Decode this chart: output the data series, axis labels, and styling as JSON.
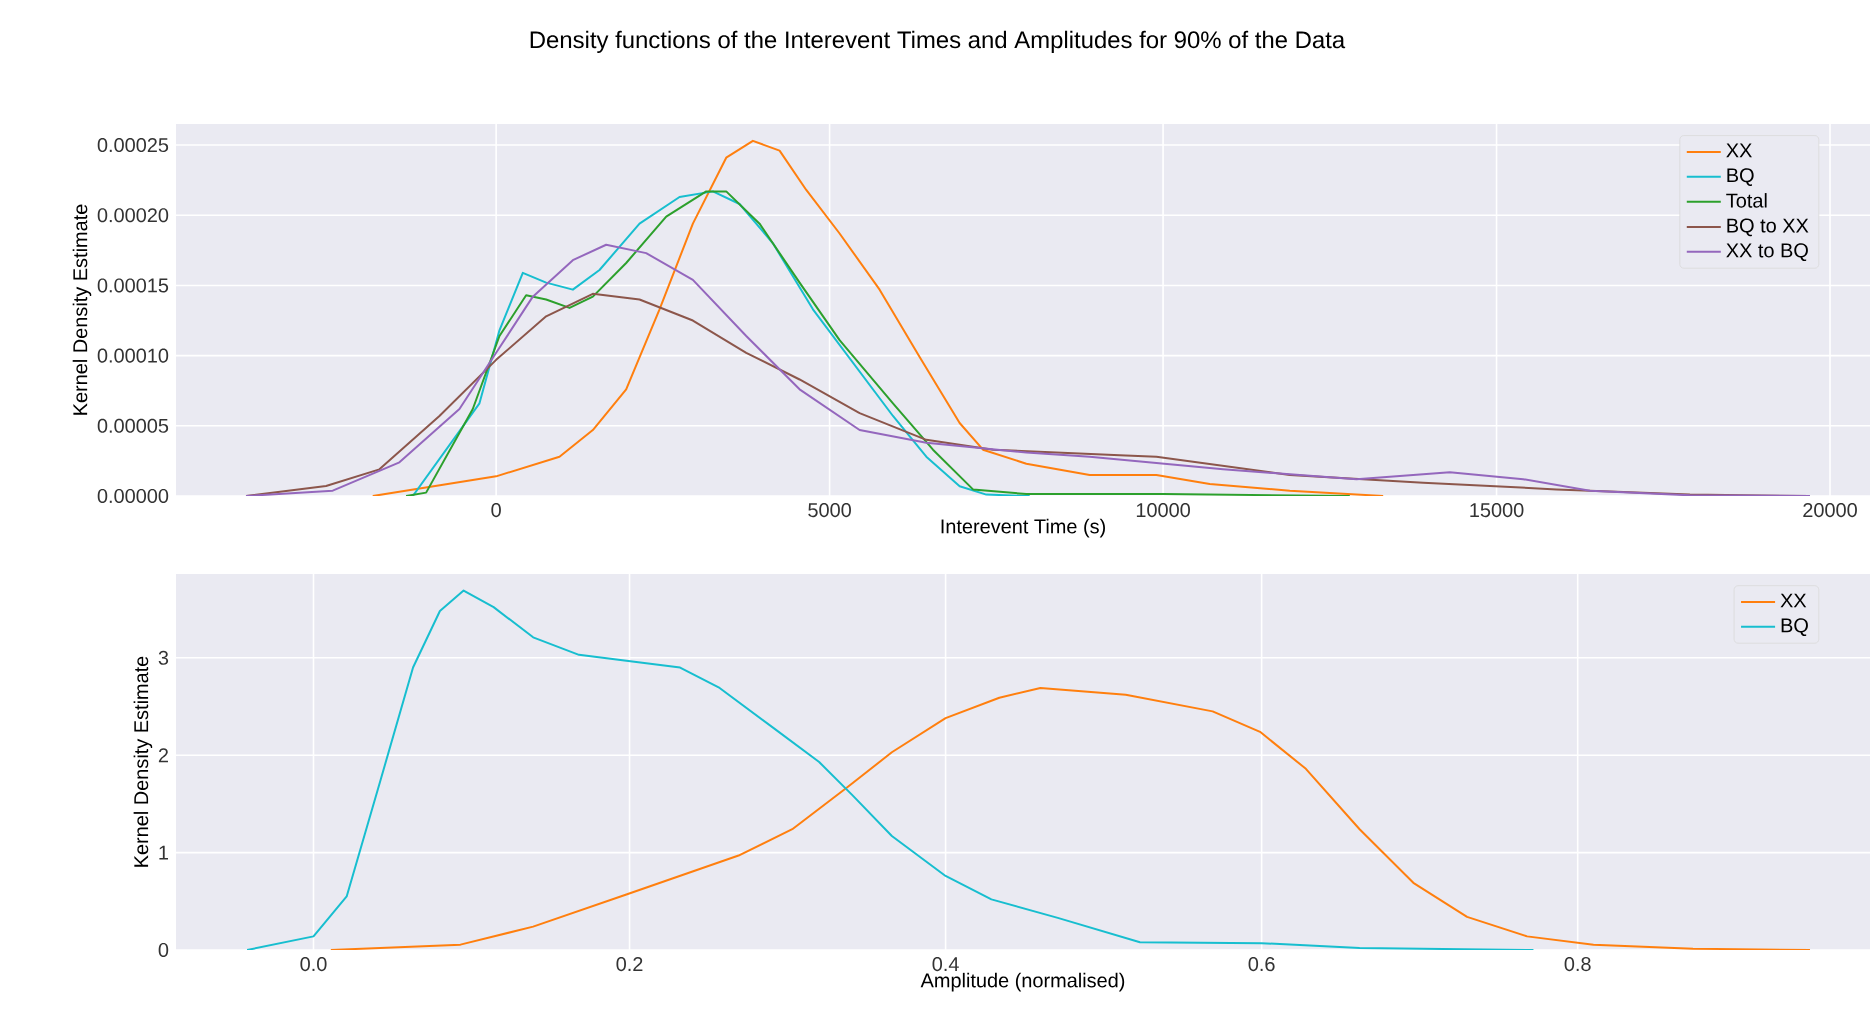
{
  "chart_data": [
    {
      "type": "line",
      "title": "Density functions of the Interevent Times and Amplitudes for 90% of the Data",
      "xlabel": "Interevent Time (s)",
      "ylabel": "Kernel Density Estimate",
      "xlim": [
        -4800,
        20600
      ],
      "ylim": [
        0,
        0.000265
      ],
      "xticks": [
        0,
        5000,
        10000,
        15000,
        20000
      ],
      "yticks": [
        {
          "value": 0,
          "label": "0.00000"
        },
        {
          "value": 5e-05,
          "label": "0.00005"
        },
        {
          "value": 0.0001,
          "label": "0.00010"
        },
        {
          "value": 0.00015,
          "label": "0.00015"
        },
        {
          "value": 0.0002,
          "label": "0.00020"
        },
        {
          "value": 0.00025,
          "label": "0.00025"
        }
      ],
      "grid": true,
      "legend": "top right",
      "series": [
        {
          "name": "XX",
          "color": "#ff7f0e",
          "x": [
            -1850,
            0,
            950,
            1450,
            1950,
            2450,
            2950,
            3450,
            3850,
            4250,
            4650,
            5150,
            5750,
            6350,
            6950,
            7300,
            7950,
            8900,
            9900,
            10700,
            11900,
            13300
          ],
          "values": [
            0,
            1.4e-05,
            2.8e-05,
            4.7e-05,
            7.6e-05,
            0.000133,
            0.000194,
            0.000241,
            0.000253,
            0.000246,
            0.000218,
            0.000187,
            0.000147,
            9.9e-05,
            5.2e-05,
            3.3e-05,
            2.3e-05,
            1.5e-05,
            1.5e-05,
            8.5e-06,
            3.8e-06,
            0
          ]
        },
        {
          "name": "BQ",
          "color": "#17becf",
          "x": [
            -1250,
            -250,
            50,
            400,
            750,
            1150,
            1550,
            2150,
            2750,
            3250,
            3650,
            4150,
            4750,
            5350,
            5950,
            6450,
            6950,
            7350,
            8000
          ],
          "values": [
            0,
            6.6e-05,
            0.000118,
            0.000159,
            0.000152,
            0.000147,
            0.000161,
            0.000194,
            0.000213,
            0.000217,
            0.000208,
            0.00018,
            0.000133,
            9.5e-05,
            5.7e-05,
            2.8e-05,
            7e-06,
            1e-06,
            0
          ]
        },
        {
          "name": "Total",
          "color": "#2ca02c",
          "x": [
            -1350,
            -1050,
            -350,
            50,
            450,
            750,
            1100,
            1450,
            1950,
            2550,
            3150,
            3450,
            3950,
            4550,
            5150,
            5950,
            6550,
            7150,
            7950,
            10000,
            12800
          ],
          "values": [
            0,
            2.4e-06,
            6.2e-05,
            0.000114,
            0.000143,
            0.00014,
            0.000134,
            0.000142,
            0.000166,
            0.000199,
            0.000217,
            0.000217,
            0.000194,
            0.000152,
            0.000111,
            6.6e-05,
            3.3e-05,
            4.7e-06,
            1.4e-06,
            1.4e-06,
            0
          ]
        },
        {
          "name": "BQ to XX",
          "color": "#8c564b",
          "x": [
            -3750,
            -2550,
            -1750,
            -850,
            0,
            750,
            1450,
            2150,
            2950,
            3750,
            4550,
            5450,
            6450,
            7450,
            9350,
            9900,
            11900,
            13900,
            15900,
            17900,
            19700
          ],
          "values": [
            0,
            7.1e-06,
            1.9e-05,
            5.7e-05,
            9.7e-05,
            0.000128,
            0.000144,
            0.00014,
            0.000125,
            0.000102,
            8.3e-05,
            5.9e-05,
            4e-05,
            3.3e-05,
            2.9e-05,
            2.8e-05,
            1.5e-05,
            9.5e-06,
            4.7e-06,
            1e-06,
            0
          ]
        },
        {
          "name": "XX to BQ",
          "color": "#9467bd",
          "x": [
            -3750,
            -2450,
            -1450,
            -550,
            0,
            550,
            1150,
            1650,
            2250,
            2950,
            3750,
            4550,
            5450,
            6450,
            7950,
            8900,
            10900,
            12900,
            14300,
            15400,
            16400,
            17900,
            19700
          ],
          "values": [
            0,
            3.8e-06,
            2.4e-05,
            6.2e-05,
            0.000102,
            0.000142,
            0.000168,
            0.000179,
            0.000173,
            0.000154,
            0.000114,
            7.6e-05,
            4.7e-05,
            3.8e-05,
            3.1e-05,
            2.8e-05,
            1.9e-05,
            1.2e-05,
            1.7e-05,
            1.2e-05,
            3.8e-06,
            5e-07,
            0
          ]
        }
      ]
    },
    {
      "type": "line",
      "xlabel": "Amplitude (normalised)",
      "ylabel": "Kernel Density Estimate",
      "xlim": [
        -0.087,
        0.985
      ],
      "ylim": [
        0,
        3.86
      ],
      "xticks": [
        {
          "value": 0,
          "label": "0.0"
        },
        {
          "value": 0.2,
          "label": "0.2"
        },
        {
          "value": 0.4,
          "label": "0.4"
        },
        {
          "value": 0.6,
          "label": "0.6"
        },
        {
          "value": 0.8,
          "label": "0.8"
        }
      ],
      "yticks": [
        0,
        1,
        2,
        3
      ],
      "grid": true,
      "legend": "top right",
      "series": [
        {
          "name": "XX",
          "color": "#ff7f0e",
          "x": [
            0.011,
            0.093,
            0.139,
            0.198,
            0.269,
            0.303,
            0.337,
            0.366,
            0.4,
            0.434,
            0.46,
            0.514,
            0.569,
            0.599,
            0.628,
            0.662,
            0.696,
            0.73,
            0.768,
            0.81,
            0.873,
            0.947
          ],
          "values": [
            0,
            0.055,
            0.24,
            0.57,
            0.97,
            1.24,
            1.66,
            2.03,
            2.38,
            2.59,
            2.69,
            2.62,
            2.45,
            2.24,
            1.86,
            1.24,
            0.69,
            0.34,
            0.14,
            0.055,
            0.014,
            0
          ]
        },
        {
          "name": "BQ",
          "color": "#17becf",
          "x": [
            -0.042,
            0,
            0.021,
            0.042,
            0.063,
            0.08,
            0.095,
            0.114,
            0.139,
            0.168,
            0.198,
            0.232,
            0.257,
            0.291,
            0.32,
            0.341,
            0.366,
            0.4,
            0.429,
            0.471,
            0.523,
            0.6,
            0.662,
            0.772
          ],
          "values": [
            0,
            0.14,
            0.55,
            1.72,
            2.9,
            3.48,
            3.69,
            3.52,
            3.21,
            3.03,
            2.97,
            2.9,
            2.69,
            2.28,
            1.93,
            1.59,
            1.17,
            0.76,
            0.52,
            0.33,
            0.08,
            0.07,
            0.02,
            0
          ]
        }
      ]
    }
  ]
}
